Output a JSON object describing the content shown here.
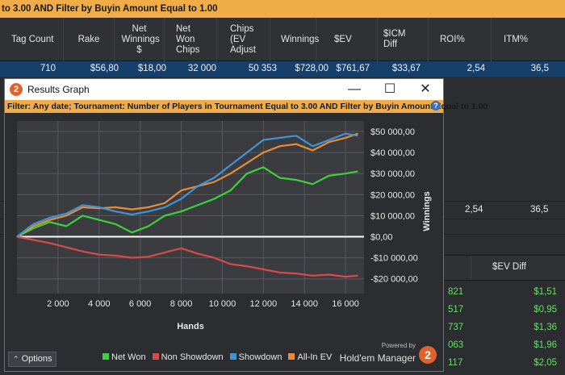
{
  "background": {
    "filter_text": "to 3.00 AND Filter by Buyin Amount Equal to 1.00",
    "columns": [
      "Tag Count",
      "Rake",
      "Net Winnings $",
      "Net Won Chips",
      "Chips (EV Adjust",
      "Winnings",
      "$EV",
      "$ICM Diff",
      "ROI%",
      "ITM%"
    ],
    "row": [
      "710",
      "$56,80",
      "$18,00",
      "32 000",
      "50 353",
      "$728,00",
      "$761,67",
      "$33,67",
      "2,54",
      "36,5"
    ],
    "totals": {
      "roi": "2,54",
      "itm": "36,5"
    },
    "table_header": "$EV Diff",
    "list": [
      {
        "a": "821",
        "b": "$1,51"
      },
      {
        "a": "517",
        "b": "$0,95"
      },
      {
        "a": "737",
        "b": "$1,36"
      },
      {
        "a": "063",
        "b": "$1,96"
      },
      {
        "a": "117",
        "b": "$2,05"
      }
    ]
  },
  "window": {
    "title": "Results Graph",
    "logo_char": "2",
    "controls": {
      "minimize": "—",
      "maximize": "☐",
      "close": "✕"
    },
    "filter": "Filter: Any date; Tournament: Number of Players in Tournament Equal to 3.00 AND Filter by Buyin Amount Equal to 1.00",
    "help": "?",
    "options_label": "Options",
    "options_icon": "chevron-up-icon",
    "brand": {
      "powered": "Powered by",
      "name": "Hold'em Manager",
      "logo_char": "2"
    }
  },
  "chart_data": {
    "type": "line",
    "xlabel": "Hands",
    "ylabel": "Winnings",
    "xlim": [
      0,
      16900
    ],
    "ylim": [
      -27000,
      55000
    ],
    "x_ticks": [
      2000,
      4000,
      6000,
      8000,
      10000,
      12000,
      14000,
      16000
    ],
    "x_tick_labels": [
      "2 000",
      "4 000",
      "6 000",
      "8 000",
      "10 000",
      "12 000",
      "14 000",
      "16 000"
    ],
    "y_ticks": [
      -20000,
      -10000,
      0,
      10000,
      20000,
      30000,
      40000,
      50000
    ],
    "y_tick_labels": [
      "-$20 000,00",
      "-$10 000,00",
      "$0,00",
      "$10 000,00",
      "$20 000,00",
      "$30 000,00",
      "$40 000,00",
      "$50 000,00"
    ],
    "grid": true,
    "legend_position": "bottom",
    "series": [
      {
        "name": "Net Won",
        "color": "#3dd23d",
        "x": [
          0,
          800,
          1600,
          2400,
          3200,
          4000,
          4800,
          5600,
          6400,
          7200,
          8000,
          8800,
          9600,
          10400,
          11200,
          12000,
          12800,
          13600,
          14400,
          15200,
          16000,
          16600
        ],
        "y": [
          0,
          4000,
          7000,
          5000,
          10000,
          8000,
          6000,
          2000,
          5000,
          10000,
          12000,
          15000,
          18000,
          22000,
          30000,
          33000,
          28000,
          27000,
          25000,
          29000,
          30000,
          31000
        ]
      },
      {
        "name": "Non Showdown",
        "color": "#d84b4b",
        "x": [
          0,
          800,
          1600,
          2400,
          3200,
          4000,
          4800,
          5600,
          6400,
          7200,
          8000,
          8800,
          9600,
          10400,
          11200,
          12000,
          12800,
          13600,
          14400,
          15200,
          16000,
          16600
        ],
        "y": [
          0,
          -1500,
          -3000,
          -5000,
          -7000,
          -8500,
          -9000,
          -10000,
          -9500,
          -7500,
          -5500,
          -8000,
          -10000,
          -13000,
          -14000,
          -15500,
          -17000,
          -17500,
          -18500,
          -18000,
          -19000,
          -18500
        ]
      },
      {
        "name": "Showdown",
        "color": "#3f95d8",
        "x": [
          0,
          800,
          1600,
          2400,
          3200,
          4000,
          4800,
          5600,
          6400,
          7200,
          8000,
          8800,
          9600,
          10400,
          11200,
          12000,
          12800,
          13600,
          14400,
          15200,
          16000,
          16600
        ],
        "y": [
          0,
          6000,
          9000,
          11000,
          15000,
          14000,
          12000,
          10500,
          12000,
          14000,
          18000,
          24000,
          28000,
          34000,
          40000,
          46000,
          47000,
          48000,
          43000,
          46000,
          49000,
          48000
        ]
      },
      {
        "name": "All-In EV",
        "color": "#e88c3a",
        "x": [
          0,
          800,
          1600,
          2400,
          3200,
          4000,
          4800,
          5600,
          6400,
          7200,
          8000,
          8800,
          9600,
          10400,
          11200,
          12000,
          12800,
          13600,
          14400,
          15200,
          16000,
          16600
        ],
        "y": [
          0,
          5000,
          8000,
          10000,
          14000,
          13500,
          14000,
          13000,
          14000,
          16000,
          22000,
          24000,
          26000,
          30000,
          35000,
          40000,
          43000,
          44000,
          41000,
          45000,
          47000,
          49000
        ]
      }
    ]
  }
}
